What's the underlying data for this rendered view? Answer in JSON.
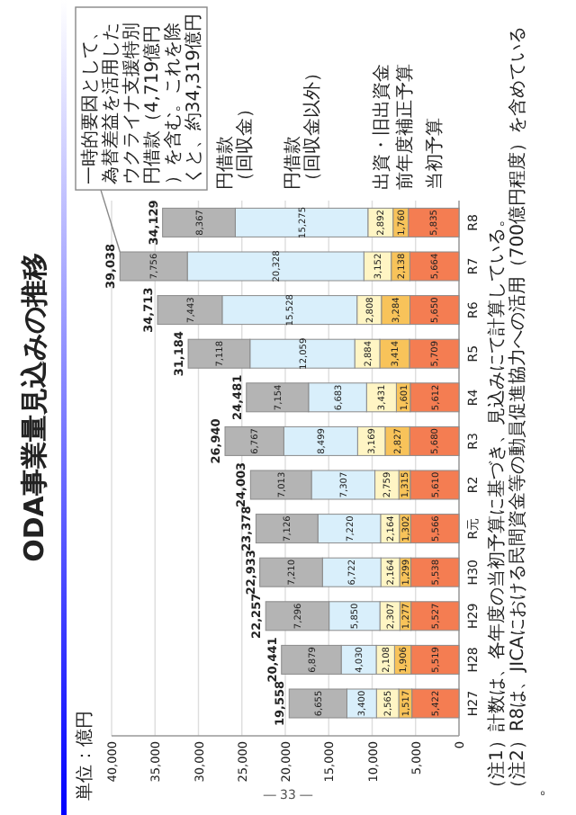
{
  "chart_data": {
    "type": "bar",
    "stacked": true,
    "orientation": "horizontal",
    "title": "ODA事業量見込みの推移",
    "categories": [
      "R8",
      "R7",
      "R6",
      "R5",
      "R4",
      "R3",
      "R2",
      "R元",
      "H30",
      "H29",
      "H28",
      "H27"
    ],
    "series": [
      {
        "name": "当初予算",
        "color": "#f47d52",
        "values": [
          5835,
          5664,
          5650,
          5709,
          5612,
          5680,
          5610,
          5566,
          5538,
          5527,
          5519,
          5422
        ],
        "value_labels": [
          "5,835",
          "5,664",
          "5,650",
          "5,709",
          "5,612",
          "5,680",
          "5,610",
          "5,566",
          "5,538",
          "5,527",
          "5,519",
          "5,422"
        ]
      },
      {
        "name": "前年度補正予算",
        "color": "#f8c35a",
        "values": [
          1760,
          2138,
          3284,
          3414,
          1601,
          2827,
          1315,
          1302,
          1299,
          1277,
          1906,
          1517
        ],
        "value_labels": [
          "1,760",
          "2,138",
          "3,284",
          "3,414",
          "1,601",
          "2,827",
          "1,315",
          "1,302",
          "1,299",
          "1,277",
          "1,906",
          "1,517"
        ]
      },
      {
        "name": "出資・旧出資金",
        "color": "#fff5c4",
        "values": [
          2892,
          3152,
          2808,
          2884,
          3431,
          3169,
          2759,
          2164,
          2164,
          2307,
          2108,
          2565
        ],
        "value_labels": [
          "2,892",
          "3,152",
          "2,808",
          "2,884",
          "3,431",
          "3,169",
          "2,759",
          "2,164",
          "2,164",
          "2,307",
          "2,108",
          "2,565"
        ]
      },
      {
        "name": "円借款（回収金以外）",
        "color": "#d9effb",
        "values": [
          15275,
          20328,
          15528,
          12059,
          6683,
          8499,
          7307,
          7220,
          6722,
          5850,
          4030,
          3400
        ],
        "value_labels": [
          "15,275",
          "20,328",
          "15,528",
          "12,059",
          "6,683",
          "8,499",
          "7,307",
          "7,220",
          "6,722",
          "5,850",
          "4,030",
          "3,400"
        ]
      },
      {
        "name": "円借款（回収金）",
        "color": "#b4b4b4",
        "values": [
          8367,
          7756,
          7443,
          7118,
          7154,
          6767,
          7013,
          7126,
          7210,
          7296,
          6879,
          6655
        ],
        "value_labels": [
          "8,367",
          "7,756",
          "7,443",
          "7,118",
          "7,154",
          "6,767",
          "7,013",
          "7,126",
          "7,210",
          "7,296",
          "6,879",
          "6,655"
        ]
      }
    ],
    "totals": [
      "34,129",
      "39,038",
      "34,713",
      "31,184",
      "24,481",
      "26,940",
      "24,003",
      "23,378",
      "22,933",
      "22,257",
      "20,441",
      "19,558"
    ],
    "xlim": [
      40000,
      0
    ],
    "xticks": [
      {
        "value": 40000,
        "label": "40,000"
      },
      {
        "value": 35000,
        "label": "35,000"
      },
      {
        "value": 30000,
        "label": "30,000"
      },
      {
        "value": 25000,
        "label": "25,000"
      },
      {
        "value": 20000,
        "label": "20,000"
      },
      {
        "value": 15000,
        "label": "15,000"
      },
      {
        "value": 10000,
        "label": "10,000"
      },
      {
        "value": 5000,
        "label": "5,000"
      },
      0
    ],
    "grid": "x",
    "legend": "top",
    "annotations": [
      {
        "text": "一時的要因として、為替差益を活用したウクライナ支援特別円借款（4,719億円）を含む。これを除くと、約34,319億円",
        "x": 39038,
        "y": "R7"
      },
      "単位：億円",
      "（注1）計数は、各年度の当初予算に基づき、見込みにて計算している。",
      "（注2）R8は、JICAにおける民間資金等の動員促進協力への活用（700億円程度）を含めている。",
      "― 33 ―"
    ]
  }
}
